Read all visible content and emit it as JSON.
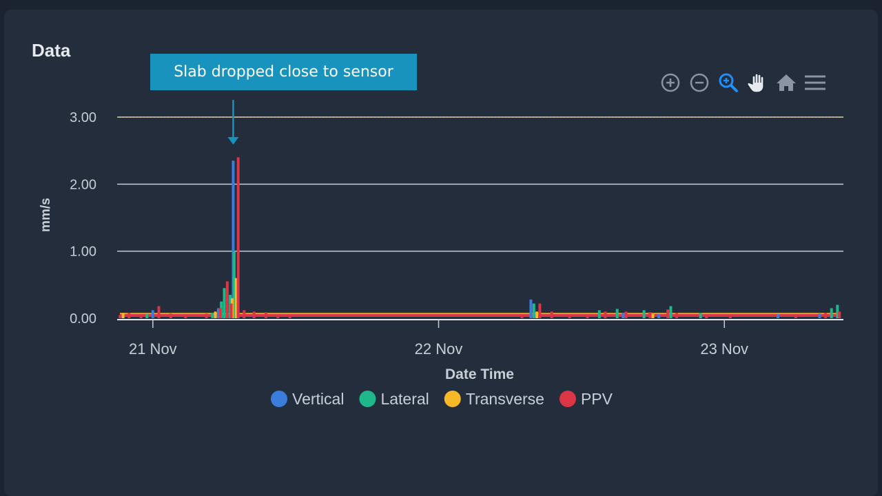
{
  "panel": {
    "title": "Data"
  },
  "annotation": {
    "text": "Slab dropped close to sensor",
    "x": "2024-11-21T06:45",
    "color": "#1893bd"
  },
  "toolbar": [
    {
      "name": "zoom-in-icon",
      "color": "#8a94a3"
    },
    {
      "name": "zoom-out-icon",
      "color": "#8a94a3"
    },
    {
      "name": "selection-zoom-icon",
      "color": "#1e90ff"
    },
    {
      "name": "pan-icon",
      "color": "#e6e9ee"
    },
    {
      "name": "reset-zoom-icon",
      "color": "#8a94a3"
    },
    {
      "name": "menu-icon",
      "color": "#8a94a3"
    }
  ],
  "chart_data": {
    "type": "bar",
    "xlabel": "Date Time",
    "ylabel": "mm/s",
    "xlim": [
      "2024-11-20T21:00",
      "2024-11-23T10:00"
    ],
    "ylim": [
      0,
      3.0
    ],
    "yticks": [
      "0.00",
      "1.00",
      "2.00",
      "3.00"
    ],
    "xticks": [
      {
        "label": "21 Nov",
        "t": "2024-11-21T00:00"
      },
      {
        "label": "22 Nov",
        "t": "2024-11-22T00:00"
      },
      {
        "label": "23 Nov",
        "t": "2024-11-23T00:00"
      }
    ],
    "threshold": {
      "value": 3.0,
      "color": "#e8c547"
    },
    "legend_position": "bottom",
    "grid": true,
    "series": [
      {
        "name": "Vertical",
        "color": "#3b7ddd",
        "points": [
          [
            "2024-11-21T00:00",
            0.12
          ],
          [
            "2024-11-21T05:30",
            0.15
          ],
          [
            "2024-11-21T06:00",
            0.35
          ],
          [
            "2024-11-21T06:45",
            2.35
          ],
          [
            "2024-11-22T07:45",
            0.28
          ],
          [
            "2024-11-22T15:30",
            0.08
          ],
          [
            "2024-11-22T18:30",
            0.06
          ],
          [
            "2024-11-23T04:30",
            0.06
          ],
          [
            "2024-11-23T08:00",
            0.07
          ]
        ]
      },
      {
        "name": "Lateral",
        "color": "#1fb88a",
        "points": [
          [
            "2024-11-20T23:30",
            0.06
          ],
          [
            "2024-11-21T05:00",
            0.08
          ],
          [
            "2024-11-21T05:45",
            0.25
          ],
          [
            "2024-11-21T06:00",
            0.45
          ],
          [
            "2024-11-21T06:30",
            0.35
          ],
          [
            "2024-11-21T06:50",
            1.0
          ],
          [
            "2024-11-22T08:00",
            0.22
          ],
          [
            "2024-11-22T13:30",
            0.12
          ],
          [
            "2024-11-22T15:00",
            0.14
          ],
          [
            "2024-11-22T17:15",
            0.12
          ],
          [
            "2024-11-22T19:30",
            0.18
          ],
          [
            "2024-11-22T22:00",
            0.08
          ],
          [
            "2024-11-23T09:00",
            0.15
          ],
          [
            "2024-11-23T09:30",
            0.2
          ]
        ]
      },
      {
        "name": "Transverse",
        "color": "#f7b928",
        "points": [
          [
            "2024-11-20T21:30",
            0.08
          ],
          [
            "2024-11-21T05:15",
            0.1
          ],
          [
            "2024-11-21T06:40",
            0.3
          ],
          [
            "2024-11-21T07:00",
            0.6
          ],
          [
            "2024-11-22T08:15",
            0.1
          ],
          [
            "2024-11-22T18:00",
            0.06
          ]
        ]
      },
      {
        "name": "PPV",
        "color": "#dc3545",
        "points": [
          [
            "2024-11-20T21:15",
            0.05
          ],
          [
            "2024-11-20T22:00",
            0.08
          ],
          [
            "2024-11-20T23:00",
            0.06
          ],
          [
            "2024-11-21T00:30",
            0.18
          ],
          [
            "2024-11-21T01:30",
            0.07
          ],
          [
            "2024-11-21T02:45",
            0.06
          ],
          [
            "2024-11-21T04:30",
            0.07
          ],
          [
            "2024-11-21T05:40",
            0.15
          ],
          [
            "2024-11-21T06:15",
            0.55
          ],
          [
            "2024-11-21T06:35",
            0.22
          ],
          [
            "2024-11-21T07:10",
            2.4
          ],
          [
            "2024-11-21T07:40",
            0.12
          ],
          [
            "2024-11-21T08:30",
            0.1
          ],
          [
            "2024-11-21T09:30",
            0.09
          ],
          [
            "2024-11-21T10:30",
            0.06
          ],
          [
            "2024-11-21T11:30",
            0.06
          ],
          [
            "2024-11-22T07:00",
            0.05
          ],
          [
            "2024-11-22T08:30",
            0.22
          ],
          [
            "2024-11-22T09:30",
            0.1
          ],
          [
            "2024-11-22T11:00",
            0.06
          ],
          [
            "2024-11-22T12:30",
            0.05
          ],
          [
            "2024-11-22T14:00",
            0.1
          ],
          [
            "2024-11-22T15:45",
            0.1
          ],
          [
            "2024-11-22T17:45",
            0.09
          ],
          [
            "2024-11-22T19:15",
            0.13
          ],
          [
            "2024-11-22T20:00",
            0.08
          ],
          [
            "2024-11-22T22:30",
            0.06
          ],
          [
            "2024-11-23T00:30",
            0.06
          ],
          [
            "2024-11-23T06:00",
            0.05
          ],
          [
            "2024-11-23T08:30",
            0.08
          ],
          [
            "2024-11-23T09:40",
            0.1
          ]
        ]
      }
    ]
  }
}
